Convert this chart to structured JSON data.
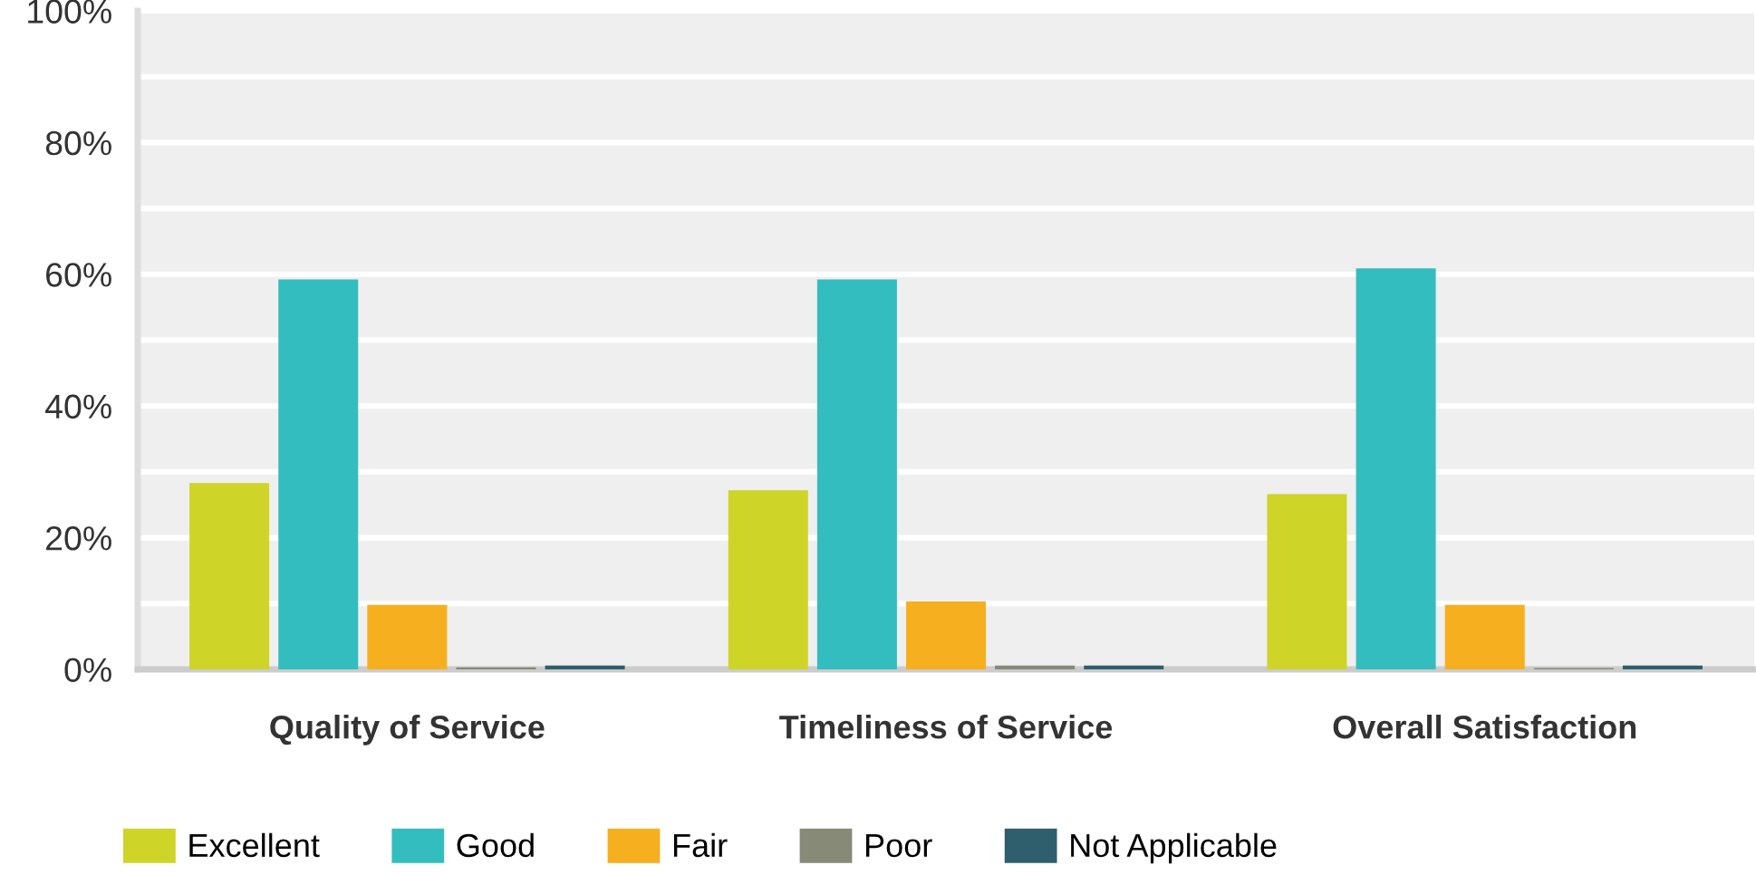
{
  "chart_data": {
    "type": "bar",
    "categories": [
      "Quality of Service",
      "Timeliness of Service",
      "Overall Satisfaction"
    ],
    "series": [
      {
        "name": "Excellent",
        "color": "#cfd428",
        "values": [
          28.3,
          27.2,
          26.6
        ]
      },
      {
        "name": "Good",
        "color": "#34bdbf",
        "values": [
          59.2,
          59.2,
          60.9
        ]
      },
      {
        "name": "Fair",
        "color": "#f6af1f",
        "values": [
          9.8,
          10.3,
          9.8
        ]
      },
      {
        "name": "Poor",
        "color": "#888a78",
        "values": [
          0.3,
          0.6,
          0.2
        ]
      },
      {
        "name": "Not Applicable",
        "color": "#2f5f6c",
        "values": [
          0.6,
          0.6,
          0.6
        ]
      }
    ],
    "ylim": [
      0,
      100
    ],
    "yticks": [
      {
        "value": 0,
        "label": "0%"
      },
      {
        "value": 10,
        "label": null
      },
      {
        "value": 20,
        "label": "20%"
      },
      {
        "value": 30,
        "label": null
      },
      {
        "value": 40,
        "label": "40%"
      },
      {
        "value": 50,
        "label": null
      },
      {
        "value": 60,
        "label": "60%"
      },
      {
        "value": 70,
        "label": null
      },
      {
        "value": 80,
        "label": "80%"
      },
      {
        "value": 90,
        "label": null
      },
      {
        "value": 100,
        "label": "100%"
      }
    ],
    "grid": "y",
    "legend": "bottom"
  }
}
